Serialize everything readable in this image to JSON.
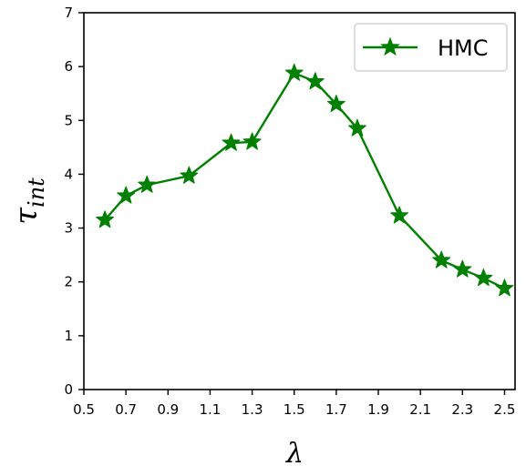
{
  "chart_data": {
    "type": "line",
    "xlabel": "λ",
    "ylabel_main": "τ",
    "ylabel_sub": "int",
    "xlim": [
      0.5,
      2.55
    ],
    "ylim": [
      0,
      7
    ],
    "xticks": [
      "0.5",
      "0.7",
      "0.9",
      "1.1",
      "1.3",
      "1.5",
      "1.7",
      "1.9",
      "2.1",
      "2.3",
      "2.5"
    ],
    "yticks": [
      "0",
      "1",
      "2",
      "3",
      "4",
      "5",
      "6",
      "7"
    ],
    "grid": false,
    "legend_position": "top-right",
    "series": [
      {
        "name": "HMC",
        "color": "#008000",
        "marker": "star",
        "x": [
          0.6,
          0.7,
          0.8,
          1.0,
          1.2,
          1.3,
          1.5,
          1.6,
          1.7,
          1.8,
          2.0,
          2.2,
          2.3,
          2.4,
          2.5
        ],
        "y": [
          3.15,
          3.6,
          3.8,
          3.97,
          4.58,
          4.6,
          5.88,
          5.72,
          5.3,
          4.85,
          3.23,
          2.4,
          2.23,
          2.07,
          1.88
        ]
      }
    ]
  }
}
